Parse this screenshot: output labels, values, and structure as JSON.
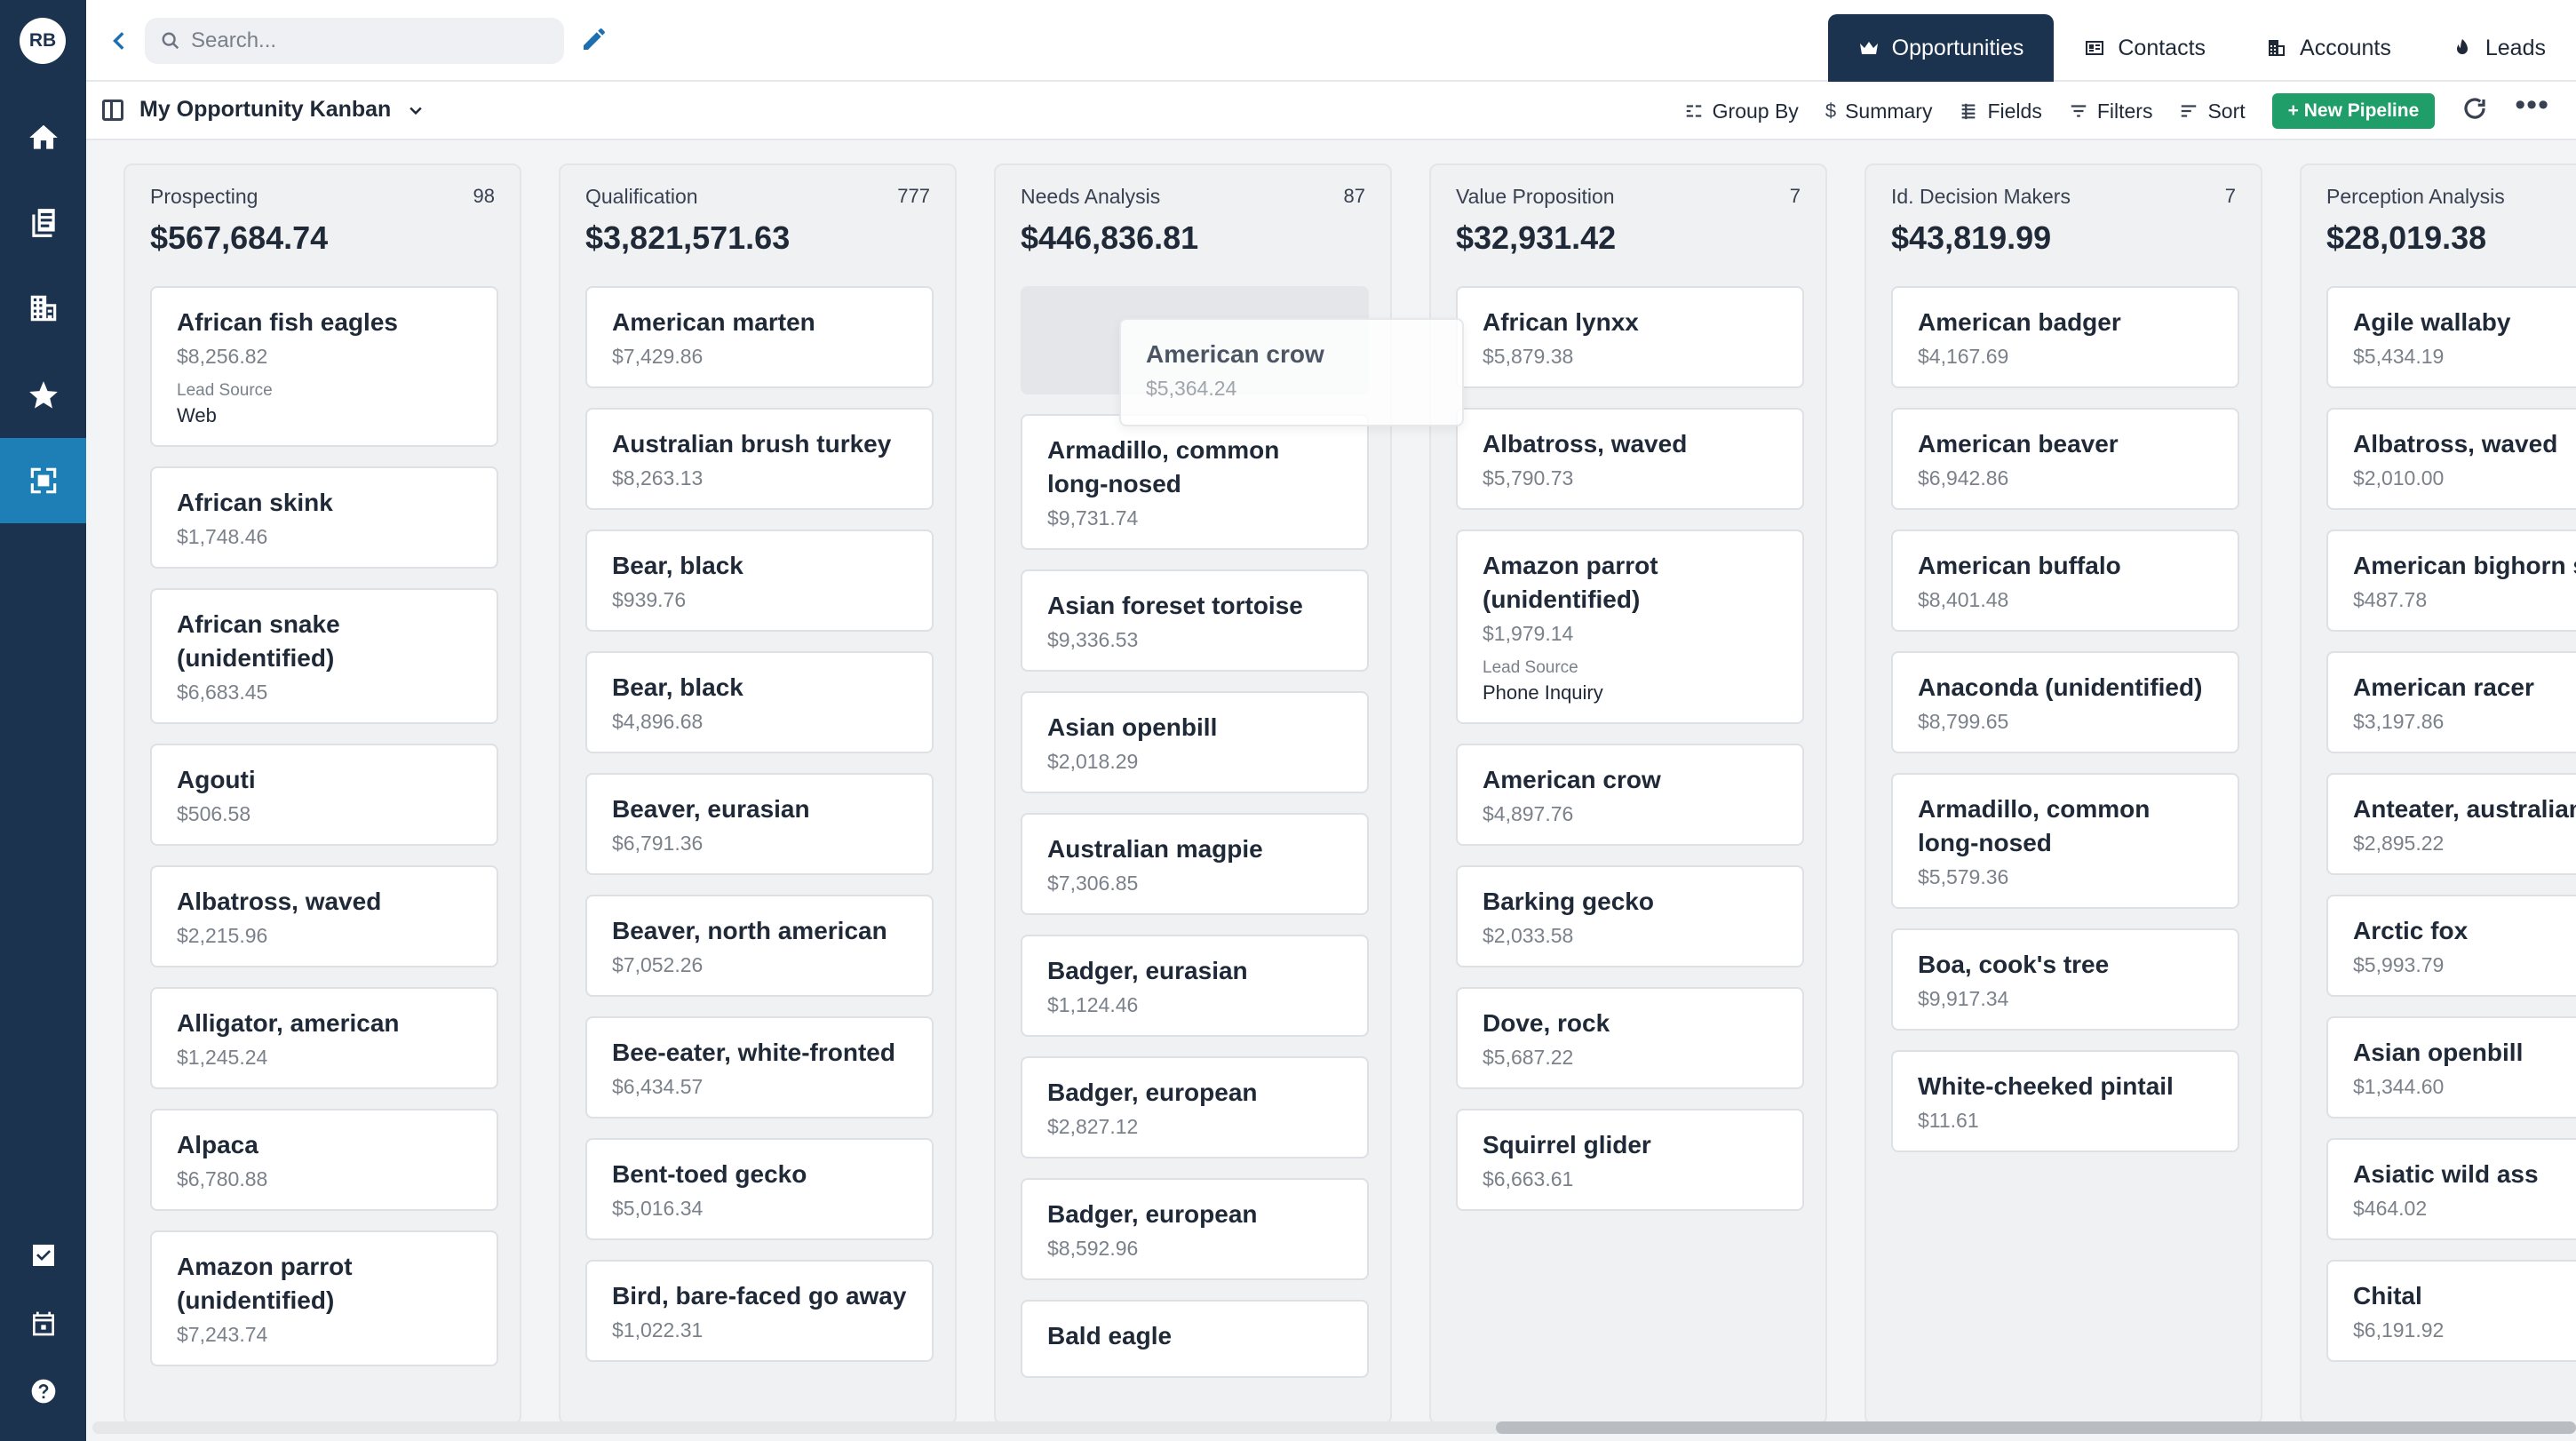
{
  "user": {
    "initials": "RB"
  },
  "search": {
    "placeholder": "Search..."
  },
  "nav_tabs": [
    {
      "label": "Opportunities",
      "icon": "crown-icon"
    },
    {
      "label": "Contacts",
      "icon": "contact-card-icon"
    },
    {
      "label": "Accounts",
      "icon": "building-icon"
    },
    {
      "label": "Leads",
      "icon": "flame-icon"
    }
  ],
  "view": {
    "title": "My Opportunity Kanban"
  },
  "toolbar": {
    "group_by": "Group By",
    "summary": "Summary",
    "fields": "Fields",
    "filters": "Filters",
    "sort": "Sort",
    "new_pipeline": "+ New Pipeline"
  },
  "columns": [
    {
      "name": "Prospecting",
      "count": "98",
      "total": "$567,684.74",
      "cards": [
        {
          "title": "African fish eagles",
          "amount": "$8,256.82",
          "meta_label": "Lead Source",
          "meta_value": "Web"
        },
        {
          "title": "African skink",
          "amount": "$1,748.46"
        },
        {
          "title": "African snake (unidentified)",
          "amount": "$6,683.45"
        },
        {
          "title": "Agouti",
          "amount": "$506.58"
        },
        {
          "title": "Albatross, waved",
          "amount": "$2,215.96"
        },
        {
          "title": "Alligator, american",
          "amount": "$1,245.24"
        },
        {
          "title": "Alpaca",
          "amount": "$6,780.88"
        },
        {
          "title": "Amazon parrot (unidentified)",
          "amount": "$7,243.74"
        }
      ]
    },
    {
      "name": "Qualification",
      "count": "777",
      "total": "$3,821,571.63",
      "cards": [
        {
          "title": "American marten",
          "amount": "$7,429.86"
        },
        {
          "title": "Australian brush turkey",
          "amount": "$8,263.13"
        },
        {
          "title": "Bear, black",
          "amount": "$939.76"
        },
        {
          "title": "Bear, black",
          "amount": "$4,896.68"
        },
        {
          "title": "Beaver, eurasian",
          "amount": "$6,791.36"
        },
        {
          "title": "Beaver, north american",
          "amount": "$7,052.26"
        },
        {
          "title": "Bee-eater, white-fronted",
          "amount": "$6,434.57"
        },
        {
          "title": "Bent-toed gecko",
          "amount": "$5,016.34"
        },
        {
          "title": "Bird, bare-faced go away",
          "amount": "$1,022.31"
        }
      ]
    },
    {
      "name": "Needs Analysis",
      "count": "87",
      "total": "$446,836.81",
      "cards": [
        {
          "title": "Armadillo, common long-nosed",
          "amount": "$9,731.74"
        },
        {
          "title": "Asian foreset tortoise",
          "amount": "$9,336.53"
        },
        {
          "title": "Asian openbill",
          "amount": "$2,018.29"
        },
        {
          "title": "Australian magpie",
          "amount": "$7,306.85"
        },
        {
          "title": "Badger, eurasian",
          "amount": "$1,124.46"
        },
        {
          "title": "Badger, european",
          "amount": "$2,827.12"
        },
        {
          "title": "Badger, european",
          "amount": "$8,592.96"
        },
        {
          "title": "Bald eagle",
          "amount": ""
        }
      ]
    },
    {
      "name": "Value Proposition",
      "count": "7",
      "total": "$32,931.42",
      "cards": [
        {
          "title": "African lynxx",
          "amount": "$5,879.38"
        },
        {
          "title": "Albatross, waved",
          "amount": "$5,790.73"
        },
        {
          "title": "Amazon parrot (unidentified)",
          "amount": "$1,979.14",
          "meta_label": "Lead Source",
          "meta_value": "Phone Inquiry"
        },
        {
          "title": "American crow",
          "amount": "$4,897.76"
        },
        {
          "title": "Barking gecko",
          "amount": "$2,033.58"
        },
        {
          "title": "Dove, rock",
          "amount": "$5,687.22"
        },
        {
          "title": "Squirrel glider",
          "amount": "$6,663.61"
        }
      ]
    },
    {
      "name": "Id. Decision Makers",
      "count": "7",
      "total": "$43,819.99",
      "cards": [
        {
          "title": "American badger",
          "amount": "$4,167.69"
        },
        {
          "title": "American beaver",
          "amount": "$6,942.86"
        },
        {
          "title": "American buffalo",
          "amount": "$8,401.48"
        },
        {
          "title": "Anaconda (unidentified)",
          "amount": "$8,799.65"
        },
        {
          "title": "Armadillo, common long-nosed",
          "amount": "$5,579.36"
        },
        {
          "title": "Boa, cook's tree",
          "amount": "$9,917.34"
        },
        {
          "title": "White-cheeked pintail",
          "amount": "$11.61"
        }
      ]
    },
    {
      "name": "Perception Analysis",
      "count": "",
      "total": "$28,019.38",
      "cards": [
        {
          "title": "Agile wallaby",
          "amount": "$5,434.19"
        },
        {
          "title": "Albatross, waved",
          "amount": "$2,010.00"
        },
        {
          "title": "American bighorn s",
          "amount": "$487.78"
        },
        {
          "title": "American racer",
          "amount": "$3,197.86"
        },
        {
          "title": "Anteater, australian",
          "amount": "$2,895.22"
        },
        {
          "title": "Arctic fox",
          "amount": "$5,993.79"
        },
        {
          "title": "Asian openbill",
          "amount": "$1,344.60"
        },
        {
          "title": "Asiatic wild ass",
          "amount": "$464.02"
        },
        {
          "title": "Chital",
          "amount": "$6,191.92"
        }
      ]
    }
  ],
  "dragging_card": {
    "title": "American crow",
    "amount": "$5,364.24"
  },
  "colors": {
    "sidebar": "#1c3350",
    "sidebar_active": "#1e7fb6",
    "new_pipeline": "#1f9e6a",
    "accent": "#1e6fb0"
  }
}
